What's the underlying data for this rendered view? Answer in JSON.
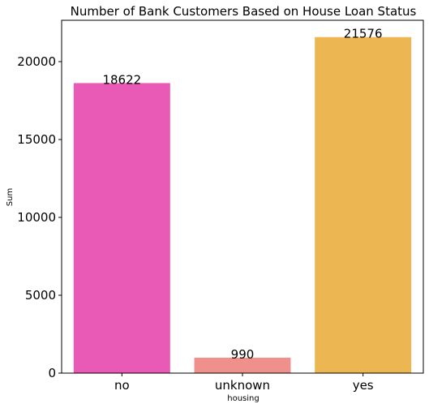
{
  "chart_data": {
    "type": "bar",
    "title": "Number of Bank Customers Based on House Loan Status",
    "xlabel": "housing",
    "ylabel": "Sum",
    "categories": [
      "no",
      "unknown",
      "yes"
    ],
    "values": [
      18622,
      990,
      21576
    ],
    "data_labels": [
      "18622",
      "990",
      "21576"
    ],
    "colors": [
      "#e85ab5",
      "#f0908c",
      "#ecb752"
    ],
    "ylim": [
      0,
      22655
    ],
    "yticks": [
      0,
      5000,
      10000,
      15000,
      20000
    ],
    "ytick_labels": [
      "0",
      "5000",
      "10000",
      "15000",
      "20000"
    ],
    "grid": false,
    "legend": "none"
  }
}
